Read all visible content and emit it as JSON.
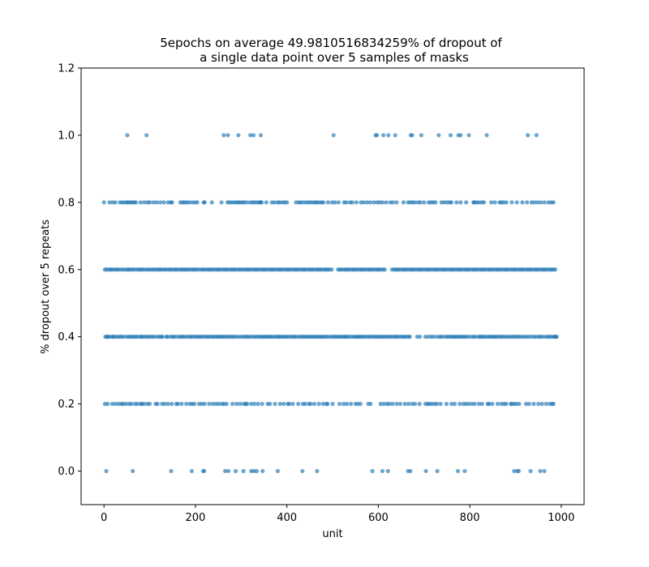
{
  "chart_data": {
    "type": "scatter",
    "title_line1": "5epochs on average 49.9810516834259% of dropout of",
    "title_line2": "a single data point over 5 samples of masks",
    "xlabel": "unit",
    "ylabel": "% dropout over 5 repeats",
    "xlim": [
      -50,
      1050
    ],
    "ylim": [
      -0.1,
      1.2
    ],
    "xticks": [
      0,
      200,
      400,
      600,
      800,
      1000
    ],
    "xtick_labels": [
      "0",
      "200",
      "400",
      "600",
      "800",
      "1000"
    ],
    "yticks": [
      0.0,
      0.2,
      0.4,
      0.6,
      0.8,
      1.0,
      1.2
    ],
    "ytick_labels": [
      "0.0",
      "0.2",
      "0.4",
      "0.6",
      "0.8",
      "1.0",
      "1.2"
    ],
    "grid": false,
    "marker_color": "#1f77b4",
    "series": [
      {
        "y": 0.0,
        "x": [
          5,
          63,
          147,
          192,
          217,
          219,
          265,
          272,
          288,
          305,
          322,
          328,
          334,
          347,
          380,
          434,
          466,
          587,
          609,
          621,
          665,
          670,
          704,
          729,
          774,
          789,
          897,
          904,
          907,
          933,
          954,
          963
        ]
      },
      {
        "y": 1.0,
        "x": [
          51,
          93,
          262,
          271,
          294,
          320,
          327,
          343,
          502,
          594,
          597,
          611,
          622,
          637,
          671,
          674,
          694,
          732,
          758,
          775,
          780,
          798,
          837,
          927,
          946
        ]
      },
      {
        "y": 0.2,
        "x": [
          2,
          8,
          18,
          25,
          32,
          38,
          42,
          48,
          55,
          60,
          68,
          73,
          80,
          83,
          88,
          95,
          100,
          113,
          117,
          127,
          133,
          140,
          148,
          158,
          162,
          170,
          180,
          188,
          193,
          198,
          208,
          214,
          220,
          230,
          238,
          245,
          251,
          258,
          262,
          268,
          281,
          290,
          298,
          306,
          310,
          313,
          322,
          329,
          337,
          346,
          358,
          363,
          374,
          385,
          393,
          402,
          405,
          413,
          425,
          435,
          440,
          448,
          452,
          460,
          470,
          479,
          486,
          489,
          500,
          515,
          524,
          531,
          540,
          550,
          555,
          561,
          578,
          583,
          605,
          612,
          619,
          624,
          631,
          640,
          648,
          658,
          666,
          674,
          680,
          690,
          703,
          708,
          712,
          717,
          723,
          728,
          736,
          749,
          760,
          767,
          778,
          786,
          792,
          798,
          805,
          811,
          820,
          827,
          839,
          842,
          849,
          861,
          869,
          875,
          880,
          890,
          892,
          897,
          902,
          908,
          923,
          930,
          940,
          950,
          958,
          967,
          975,
          980,
          983
        ]
      },
      {
        "y": 0.4,
        "x": [
          3,
          6,
          9,
          12,
          18,
          20,
          24,
          29,
          33,
          38,
          41,
          47,
          52,
          56,
          61,
          64,
          69,
          72,
          78,
          81,
          85,
          89,
          94,
          98,
          102,
          107,
          111,
          117,
          121,
          125,
          128,
          136,
          139,
          145,
          150,
          153,
          158,
          164,
          168,
          172,
          176,
          181,
          186,
          190,
          194,
          199,
          203,
          207,
          211,
          215,
          220,
          224,
          228,
          232,
          237,
          240,
          245,
          249,
          252,
          256,
          260,
          264,
          268,
          272,
          277,
          281,
          285,
          290,
          295,
          300,
          305,
          309,
          313,
          317,
          322,
          327,
          331,
          336,
          340,
          344,
          348,
          352,
          356,
          360,
          363,
          367,
          371,
          376,
          380,
          383,
          387,
          391,
          395,
          399,
          403,
          408,
          412,
          416,
          420,
          425,
          430,
          434,
          438,
          442,
          446,
          450,
          454,
          458,
          462,
          466,
          470,
          474,
          478,
          481,
          486,
          490,
          495,
          500,
          504,
          508,
          512,
          516,
          520,
          524,
          528,
          531,
          535,
          540,
          545,
          549,
          553,
          556,
          560,
          564,
          568,
          572,
          577,
          581,
          585,
          590,
          594,
          598,
          602,
          606,
          610,
          615,
          619,
          624,
          627,
          632,
          636,
          640,
          644,
          649,
          653,
          657,
          661,
          666,
          669,
          685,
          691,
          703,
          709,
          715,
          720,
          727,
          733,
          737,
          742,
          748,
          752,
          756,
          761,
          764,
          768,
          772,
          776,
          780,
          784,
          788,
          792,
          797,
          803,
          808,
          812,
          818,
          822,
          825,
          829,
          833,
          838,
          842,
          846,
          850,
          854,
          857,
          861,
          866,
          870,
          874,
          879,
          883,
          888,
          893,
          897,
          901,
          906,
          910,
          915,
          920,
          925,
          930,
          936,
          941,
          946,
          951,
          955,
          959,
          965,
          970,
          974,
          978,
          983,
          986,
          988,
          990
        ]
      },
      {
        "y": 0.6,
        "x": [
          2,
          6,
          11,
          15,
          19,
          24,
          28,
          32,
          37,
          42,
          47,
          52,
          55,
          60,
          64,
          69,
          74,
          78,
          82,
          86,
          91,
          96,
          100,
          105,
          109,
          114,
          118,
          122,
          126,
          131,
          135,
          140,
          144,
          148,
          153,
          157,
          161,
          166,
          170,
          174,
          178,
          182,
          186,
          191,
          195,
          199,
          203,
          208,
          213,
          217,
          221,
          226,
          230,
          234,
          238,
          243,
          247,
          251,
          255,
          260,
          264,
          268,
          272,
          277,
          281,
          285,
          289,
          294,
          298,
          302,
          307,
          311,
          315,
          319,
          323,
          328,
          332,
          336,
          340,
          345,
          349,
          353,
          357,
          362,
          366,
          370,
          374,
          379,
          383,
          387,
          391,
          396,
          400,
          404,
          408,
          413,
          417,
          421,
          425,
          430,
          434,
          438,
          442,
          447,
          451,
          455,
          459,
          464,
          468,
          472,
          476,
          481,
          485,
          489,
          493,
          498,
          512,
          516,
          520,
          525,
          529,
          533,
          537,
          542,
          546,
          550,
          554,
          559,
          563,
          567,
          571,
          576,
          580,
          584,
          588,
          593,
          597,
          601,
          605,
          610,
          614,
          630,
          635,
          639,
          643,
          647,
          652,
          656,
          660,
          664,
          669,
          673,
          677,
          681,
          686,
          690,
          694,
          698,
          703,
          707,
          711,
          715,
          720,
          724,
          728,
          732,
          737,
          741,
          745,
          749,
          754,
          758,
          762,
          766,
          771,
          775,
          779,
          783,
          788,
          792,
          796,
          800,
          805,
          809,
          813,
          817,
          822,
          826,
          830,
          834,
          839,
          843,
          847,
          851,
          856,
          860,
          864,
          868,
          873,
          877,
          881,
          885,
          890,
          894,
          898,
          902,
          907,
          911,
          915,
          919,
          924,
          928,
          932,
          936,
          941,
          945,
          949,
          953,
          958,
          962,
          966,
          970,
          975,
          979,
          983,
          987
        ]
      },
      {
        "y": 0.8,
        "x": [
          0,
          12,
          19,
          25,
          35,
          40,
          45,
          50,
          53,
          58,
          62,
          66,
          70,
          80,
          88,
          95,
          100,
          108,
          115,
          123,
          131,
          140,
          146,
          149,
          167,
          172,
          176,
          181,
          186,
          193,
          199,
          204,
          218,
          220,
          236,
          257,
          270,
          275,
          280,
          285,
          290,
          294,
          298,
          303,
          307,
          313,
          320,
          325,
          330,
          335,
          340,
          342,
          345,
          355,
          367,
          373,
          380,
          384,
          390,
          395,
          400,
          420,
          426,
          430,
          436,
          442,
          447,
          452,
          457,
          462,
          466,
          471,
          476,
          480,
          490,
          499,
          505,
          513,
          525,
          530,
          538,
          543,
          552,
          562,
          568,
          575,
          582,
          590,
          597,
          603,
          609,
          617,
          626,
          632,
          640,
          655,
          665,
          670,
          675,
          680,
          687,
          692,
          700,
          710,
          715,
          720,
          725,
          738,
          744,
          750,
          756,
          760,
          771,
          780,
          792,
          808,
          810,
          815,
          820,
          826,
          831,
          847,
          855,
          865,
          869,
          874,
          880,
          892,
          903,
          915,
          925,
          935,
          941,
          948,
          955,
          963,
          972,
          978,
          983
        ]
      }
    ]
  }
}
